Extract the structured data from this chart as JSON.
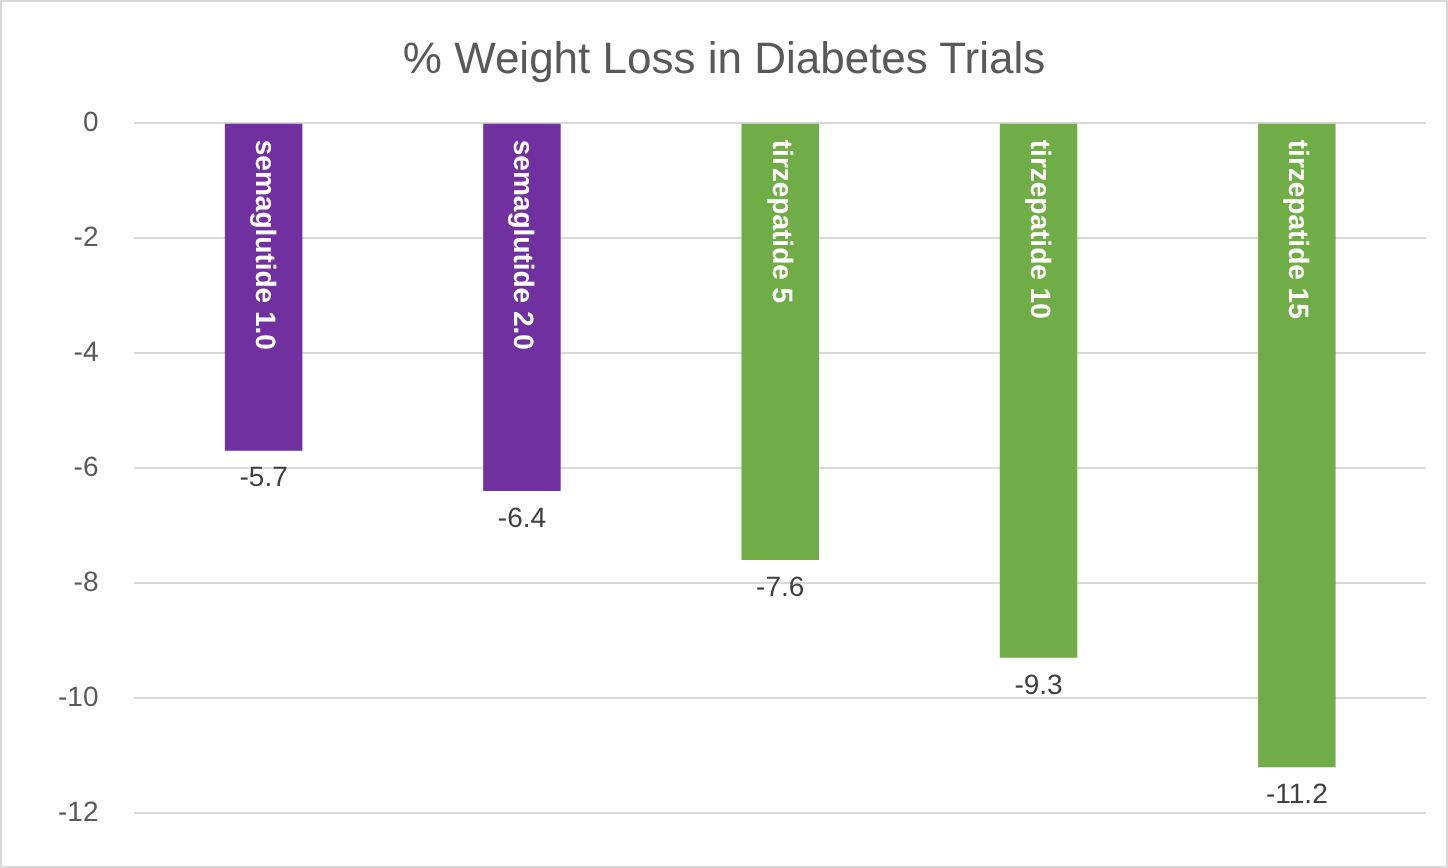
{
  "chart_data": {
    "type": "bar",
    "title": "% Weight Loss in Diabetes Trials",
    "categories": [
      "semaglutide 1.0",
      "semaglutide 2.0",
      "tirzepatide 5",
      "tirzepatide 10",
      "tirzepatide 15"
    ],
    "values": [
      -5.7,
      -6.4,
      -7.6,
      -9.3,
      -11.2
    ],
    "colors": [
      "#7030a0",
      "#7030a0",
      "#70ad47",
      "#70ad47",
      "#70ad47"
    ],
    "ylim": [
      -12,
      0
    ],
    "yticks": [
      -12,
      -10,
      -8,
      -6,
      -4,
      -2,
      0
    ],
    "grid": "y",
    "data_labels": true,
    "legend": false
  }
}
